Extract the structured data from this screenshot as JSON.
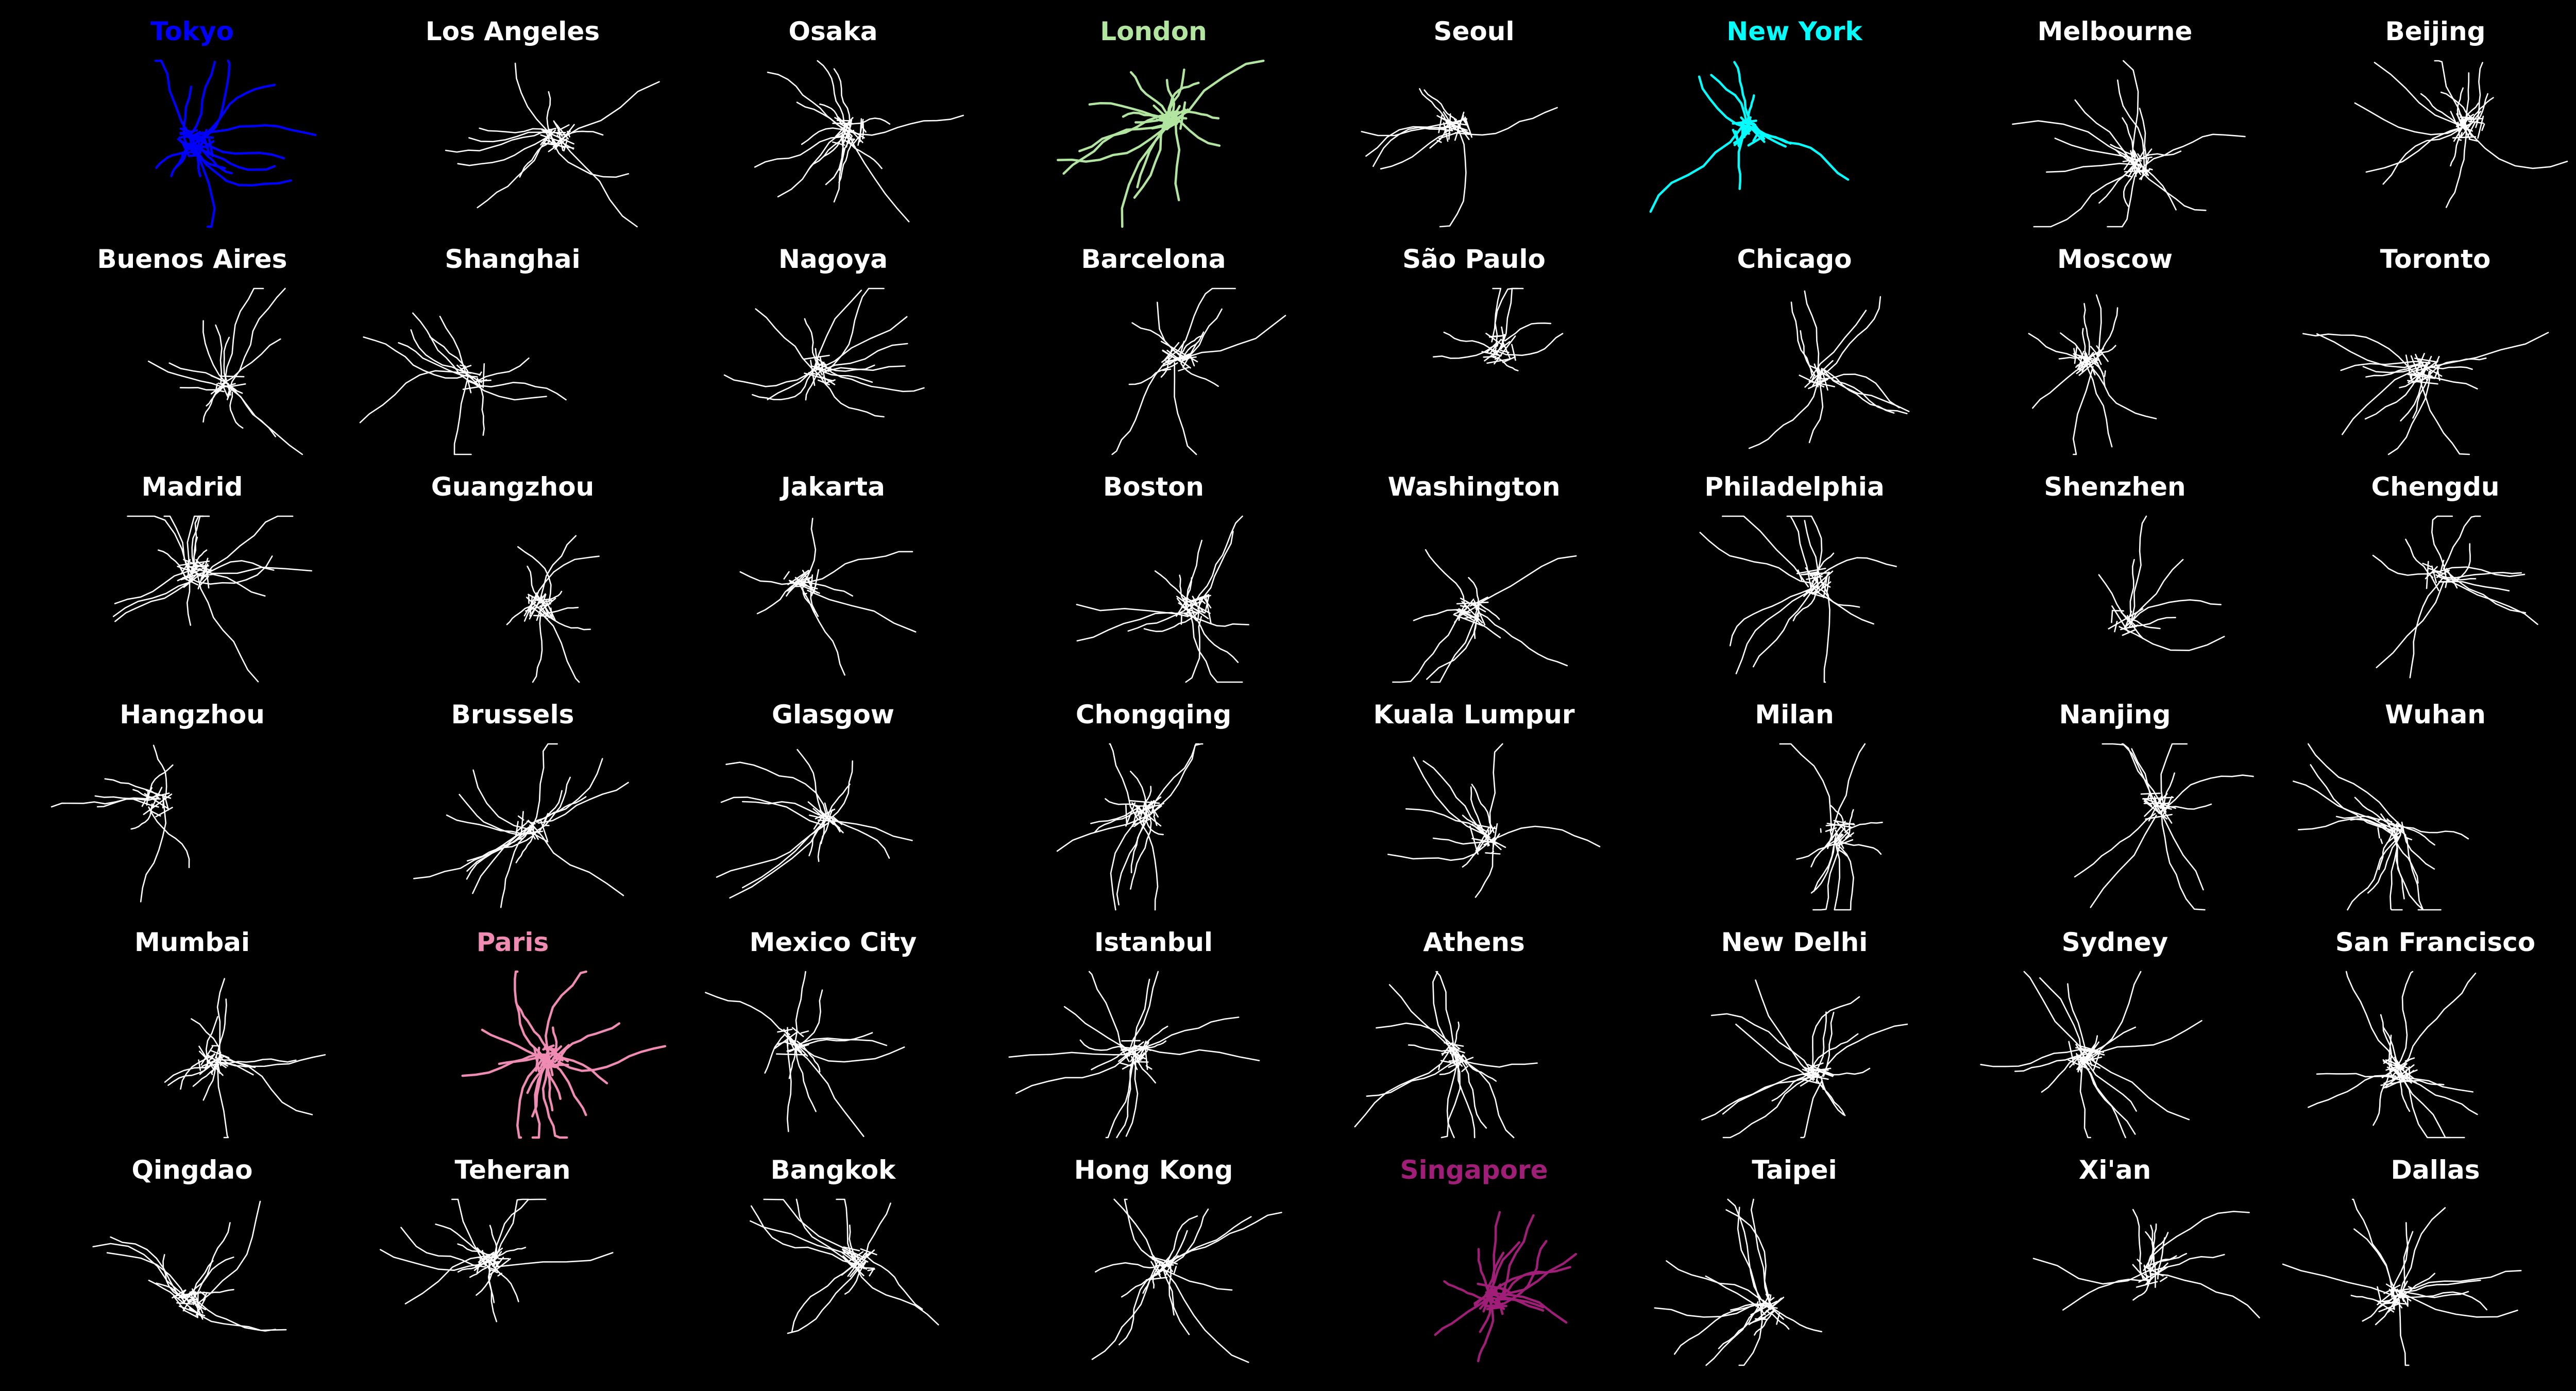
{
  "figure": {
    "background": "#000000",
    "default_line_color": "#ffffff",
    "cities": [
      {
        "name": "Tokyo",
        "color": "#0000ff",
        "highlighted": true
      },
      {
        "name": "Los Angeles",
        "color": "#ffffff",
        "highlighted": false
      },
      {
        "name": "Osaka",
        "color": "#ffffff",
        "highlighted": false
      },
      {
        "name": "London",
        "color": "#b2e6a0",
        "highlighted": true
      },
      {
        "name": "Seoul",
        "color": "#ffffff",
        "highlighted": false
      },
      {
        "name": "New York",
        "color": "#00ffff",
        "highlighted": true
      },
      {
        "name": "Melbourne",
        "color": "#ffffff",
        "highlighted": false
      },
      {
        "name": "Beijing",
        "color": "#ffffff",
        "highlighted": false
      },
      {
        "name": "Buenos Aires",
        "color": "#ffffff",
        "highlighted": false
      },
      {
        "name": "Shanghai",
        "color": "#ffffff",
        "highlighted": false
      },
      {
        "name": "Nagoya",
        "color": "#ffffff",
        "highlighted": false
      },
      {
        "name": "Barcelona",
        "color": "#ffffff",
        "highlighted": false
      },
      {
        "name": "São Paulo",
        "color": "#ffffff",
        "highlighted": false
      },
      {
        "name": "Chicago",
        "color": "#ffffff",
        "highlighted": false
      },
      {
        "name": "Moscow",
        "color": "#ffffff",
        "highlighted": false
      },
      {
        "name": "Toronto",
        "color": "#ffffff",
        "highlighted": false
      },
      {
        "name": "Madrid",
        "color": "#ffffff",
        "highlighted": false
      },
      {
        "name": "Guangzhou",
        "color": "#ffffff",
        "highlighted": false
      },
      {
        "name": "Jakarta",
        "color": "#ffffff",
        "highlighted": false
      },
      {
        "name": "Boston",
        "color": "#ffffff",
        "highlighted": false
      },
      {
        "name": "Washington",
        "color": "#ffffff",
        "highlighted": false
      },
      {
        "name": "Philadelphia",
        "color": "#ffffff",
        "highlighted": false
      },
      {
        "name": "Shenzhen",
        "color": "#ffffff",
        "highlighted": false
      },
      {
        "name": "Chengdu",
        "color": "#ffffff",
        "highlighted": false
      },
      {
        "name": "Hangzhou",
        "color": "#ffffff",
        "highlighted": false
      },
      {
        "name": "Brussels",
        "color": "#ffffff",
        "highlighted": false
      },
      {
        "name": "Glasgow",
        "color": "#ffffff",
        "highlighted": false
      },
      {
        "name": "Chongqing",
        "color": "#ffffff",
        "highlighted": false
      },
      {
        "name": "Kuala Lumpur",
        "color": "#ffffff",
        "highlighted": false
      },
      {
        "name": "Milan",
        "color": "#ffffff",
        "highlighted": false
      },
      {
        "name": "Nanjing",
        "color": "#ffffff",
        "highlighted": false
      },
      {
        "name": "Wuhan",
        "color": "#ffffff",
        "highlighted": false
      },
      {
        "name": "Mumbai",
        "color": "#ffffff",
        "highlighted": false
      },
      {
        "name": "Paris",
        "color": "#f08cb4",
        "highlighted": true
      },
      {
        "name": "Mexico City",
        "color": "#ffffff",
        "highlighted": false
      },
      {
        "name": "Istanbul",
        "color": "#ffffff",
        "highlighted": false
      },
      {
        "name": "Athens",
        "color": "#ffffff",
        "highlighted": false
      },
      {
        "name": "New Delhi",
        "color": "#ffffff",
        "highlighted": false
      },
      {
        "name": "Sydney",
        "color": "#ffffff",
        "highlighted": false
      },
      {
        "name": "San Francisco",
        "color": "#ffffff",
        "highlighted": false
      },
      {
        "name": "Qingdao",
        "color": "#ffffff",
        "highlighted": false
      },
      {
        "name": "Teheran",
        "color": "#ffffff",
        "highlighted": false
      },
      {
        "name": "Bangkok",
        "color": "#ffffff",
        "highlighted": false
      },
      {
        "name": "Hong Kong",
        "color": "#ffffff",
        "highlighted": false
      },
      {
        "name": "Singapore",
        "color": "#a01e78",
        "highlighted": true
      },
      {
        "name": "Taipei",
        "color": "#ffffff",
        "highlighted": false
      },
      {
        "name": "Xi'an",
        "color": "#ffffff",
        "highlighted": false
      },
      {
        "name": "Dallas",
        "color": "#ffffff",
        "highlighted": false
      }
    ]
  }
}
